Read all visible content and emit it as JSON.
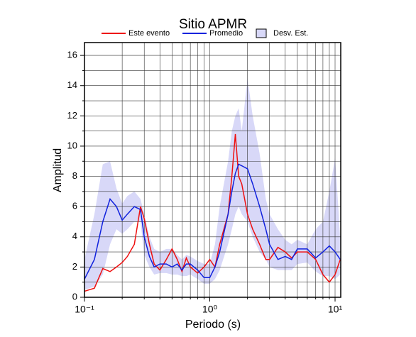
{
  "chart_data": {
    "type": "line",
    "title": "Sitio APMR",
    "xlabel": "Periodo (s)",
    "ylabel": "Amplitud",
    "xscale": "log",
    "xlim": [
      0.1,
      11.1
    ],
    "ylim": [
      0,
      16.85
    ],
    "xticks": [
      {
        "value": 0.1,
        "label": "10⁻¹"
      },
      {
        "value": 1,
        "label": "10⁰"
      },
      {
        "value": 10,
        "label": "10¹"
      }
    ],
    "yticks": [
      0,
      2,
      4,
      6,
      8,
      10,
      12,
      14,
      16
    ],
    "xminor": [
      0.2,
      0.3,
      0.4,
      0.5,
      0.6,
      0.7,
      0.8,
      0.9,
      2,
      3,
      4,
      5,
      6,
      7,
      8,
      9
    ],
    "yminor": [
      1,
      3,
      5,
      7,
      9,
      11,
      13,
      15
    ],
    "grid": true,
    "x": [
      0.1,
      0.12,
      0.14,
      0.16,
      0.18,
      0.2,
      0.22,
      0.25,
      0.28,
      0.3,
      0.33,
      0.36,
      0.4,
      0.45,
      0.5,
      0.55,
      0.6,
      0.65,
      0.7,
      0.8,
      0.9,
      1.0,
      1.1,
      1.2,
      1.4,
      1.5,
      1.6,
      1.7,
      1.8,
      2.0,
      2.2,
      2.5,
      2.8,
      3,
      3.5,
      4,
      4.5,
      5,
      6,
      7,
      8,
      9,
      10,
      11
    ],
    "series": [
      {
        "name": "Desv. Est.",
        "color": "#d8d8f8",
        "kind": "band",
        "upper": [
          2.5,
          5.5,
          8.8,
          9.0,
          7.2,
          6.2,
          6.7,
          7.0,
          6.5,
          5.5,
          4.0,
          3.2,
          3.0,
          3.2,
          3.2,
          2.8,
          2.5,
          2.8,
          2.7,
          2.4,
          2.2,
          2.2,
          3.5,
          6,
          9,
          11,
          12,
          12.5,
          11,
          14.5,
          12,
          9.5,
          6.5,
          5.5,
          4.5,
          3.8,
          3.5,
          3.8,
          3.5,
          4.5,
          5,
          7,
          9.2,
          4
        ],
        "lower": [
          0.5,
          0.7,
          1.5,
          3.5,
          4.5,
          4.2,
          4.5,
          5,
          5,
          2.8,
          2,
          1.5,
          1.6,
          1.6,
          1.5,
          1.5,
          1.4,
          1.4,
          1.5,
          1.2,
          0.9,
          0.9,
          1.2,
          1.8,
          3.5,
          4.5,
          5.5,
          6,
          5.5,
          5,
          4,
          3,
          2.5,
          2,
          1.8,
          1.8,
          1.8,
          2.2,
          2.3,
          1.7,
          1.4,
          1.4,
          1.2,
          1.5
        ]
      },
      {
        "name": "Este evento",
        "color": "#ee1111",
        "kind": "line",
        "values": [
          0.4,
          0.6,
          1.9,
          1.7,
          2.0,
          2.3,
          2.7,
          3.5,
          6.0,
          5.2,
          3.5,
          2.2,
          1.8,
          2.5,
          3.2,
          2.5,
          1.7,
          2.6,
          2.0,
          1.6,
          2.0,
          2.5,
          2.0,
          3.5,
          5.5,
          8,
          10.8,
          8,
          7.5,
          5.5,
          4.5,
          3.5,
          2.5,
          2.5,
          3.3,
          3.0,
          2.6,
          3.0,
          3.0,
          2.5,
          1.5,
          1.0,
          1.5,
          2.5
        ]
      },
      {
        "name": "Promedio",
        "color": "#1122dd",
        "kind": "line",
        "values": [
          1.2,
          2.5,
          5.0,
          6.5,
          6.0,
          5.1,
          5.5,
          6.0,
          5.8,
          4.0,
          2.7,
          2.0,
          2.2,
          2.2,
          2.0,
          2.2,
          1.8,
          2.2,
          2.2,
          1.8,
          1.3,
          1.3,
          2.0,
          3.0,
          5.5,
          7.0,
          8.2,
          8.8,
          8.7,
          8.5,
          7.5,
          6.0,
          4.5,
          3.5,
          2.5,
          2.7,
          2.5,
          3.2,
          3.2,
          2.6,
          3.0,
          3.4,
          3.0,
          2.5
        ]
      }
    ]
  }
}
